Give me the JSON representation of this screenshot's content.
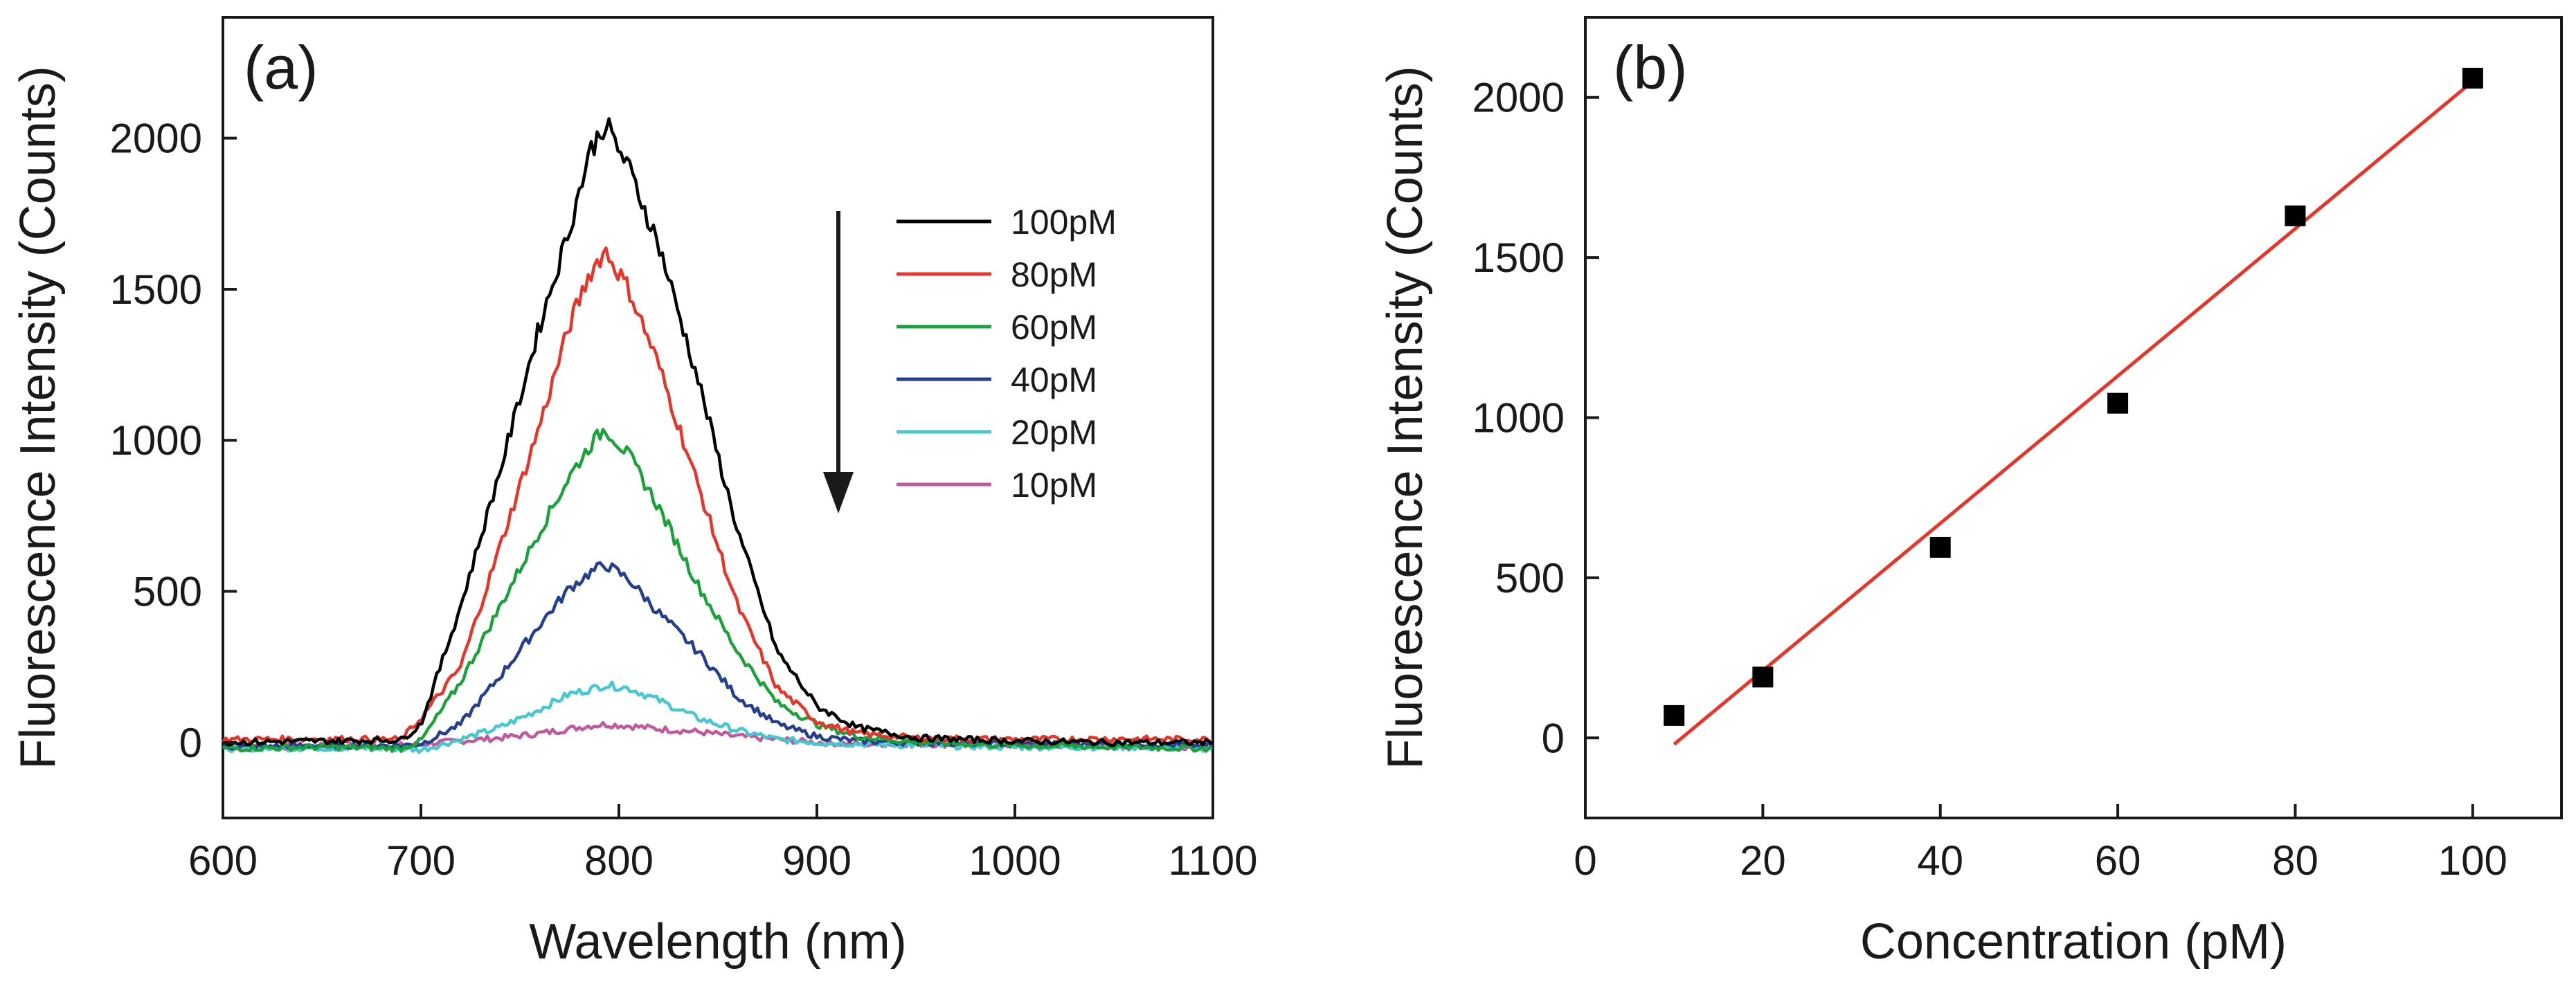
{
  "chart_data": [
    {
      "type": "line",
      "panel_label": "(a)",
      "xlabel": "Wavelength (nm)",
      "ylabel": "Fluorescence Intensity (Counts)",
      "xlim": [
        600,
        1100
      ],
      "ylim": [
        -250,
        2400
      ],
      "xticks": [
        600,
        700,
        800,
        900,
        1000,
        1100
      ],
      "yticks": [
        0,
        500,
        1000,
        1500,
        2000
      ],
      "grid": false,
      "legend_position": "top-right",
      "annotation": "downward arrow indicating decreasing concentration",
      "series": [
        {
          "name": "100pM",
          "color": "#000000",
          "peak_x": 793,
          "peak_y": 2050,
          "points": [
            [
              600,
              0
            ],
            [
              650,
              5
            ],
            [
              690,
              8
            ],
            [
              700,
              60
            ],
            [
              720,
              450
            ],
            [
              740,
              900
            ],
            [
              760,
              1380
            ],
            [
              775,
              1700
            ],
            [
              785,
              1950
            ],
            [
              793,
              2050
            ],
            [
              805,
              1900
            ],
            [
              820,
              1650
            ],
            [
              840,
              1200
            ],
            [
              860,
              700
            ],
            [
              880,
              300
            ],
            [
              900,
              120
            ],
            [
              920,
              50
            ],
            [
              950,
              15
            ],
            [
              1000,
              5
            ],
            [
              1050,
              0
            ],
            [
              1100,
              0
            ]
          ]
        },
        {
          "name": "80pM",
          "color": "#e8352a",
          "peak_x": 793,
          "peak_y": 1630,
          "points": [
            [
              600,
              10
            ],
            [
              650,
              12
            ],
            [
              690,
              10
            ],
            [
              700,
              80
            ],
            [
              720,
              250
            ],
            [
              740,
              650
            ],
            [
              760,
              1050
            ],
            [
              775,
              1380
            ],
            [
              785,
              1550
            ],
            [
              793,
              1630
            ],
            [
              805,
              1500
            ],
            [
              820,
              1250
            ],
            [
              840,
              850
            ],
            [
              860,
              450
            ],
            [
              880,
              180
            ],
            [
              900,
              70
            ],
            [
              920,
              30
            ],
            [
              950,
              15
            ],
            [
              1000,
              10
            ],
            [
              1050,
              12
            ],
            [
              1100,
              10
            ]
          ]
        },
        {
          "name": "60pM",
          "color": "#1aa33a",
          "peak_x": 793,
          "peak_y": 1040,
          "points": [
            [
              600,
              -20
            ],
            [
              650,
              -15
            ],
            [
              690,
              -20
            ],
            [
              700,
              5
            ],
            [
              720,
              200
            ],
            [
              740,
              450
            ],
            [
              760,
              700
            ],
            [
              775,
              880
            ],
            [
              785,
              980
            ],
            [
              793,
              1040
            ],
            [
              805,
              950
            ],
            [
              820,
              780
            ],
            [
              840,
              520
            ],
            [
              860,
              300
            ],
            [
              880,
              130
            ],
            [
              900,
              60
            ],
            [
              920,
              20
            ],
            [
              950,
              0
            ],
            [
              1000,
              -10
            ],
            [
              1050,
              -15
            ],
            [
              1100,
              -20
            ]
          ]
        },
        {
          "name": "40pM",
          "color": "#243f8f",
          "peak_x": 793,
          "peak_y": 590,
          "points": [
            [
              600,
              -15
            ],
            [
              650,
              -10
            ],
            [
              690,
              -10
            ],
            [
              700,
              -5
            ],
            [
              720,
              60
            ],
            [
              740,
              220
            ],
            [
              760,
              390
            ],
            [
              775,
              510
            ],
            [
              785,
              560
            ],
            [
              793,
              590
            ],
            [
              805,
              540
            ],
            [
              820,
              430
            ],
            [
              840,
              300
            ],
            [
              860,
              150
            ],
            [
              880,
              60
            ],
            [
              900,
              20
            ],
            [
              920,
              5
            ],
            [
              950,
              0
            ],
            [
              1000,
              -5
            ],
            [
              1050,
              -5
            ],
            [
              1100,
              -10
            ]
          ]
        },
        {
          "name": "20pM",
          "color": "#45c8cf",
          "peak_x": 793,
          "peak_y": 190,
          "points": [
            [
              600,
              -20
            ],
            [
              650,
              -18
            ],
            [
              690,
              -20
            ],
            [
              700,
              -25
            ],
            [
              720,
              10
            ],
            [
              740,
              50
            ],
            [
              760,
              110
            ],
            [
              775,
              160
            ],
            [
              785,
              175
            ],
            [
              793,
              190
            ],
            [
              805,
              180
            ],
            [
              820,
              140
            ],
            [
              840,
              80
            ],
            [
              860,
              40
            ],
            [
              880,
              10
            ],
            [
              900,
              0
            ],
            [
              920,
              -5
            ],
            [
              950,
              -10
            ],
            [
              1000,
              -15
            ],
            [
              1050,
              -15
            ],
            [
              1100,
              -20
            ]
          ]
        },
        {
          "name": "10pM",
          "color": "#c05a9c",
          "peak_x": 793,
          "peak_y": 60,
          "points": [
            [
              600,
              -15
            ],
            [
              650,
              -12
            ],
            [
              690,
              -10
            ],
            [
              700,
              -5
            ],
            [
              720,
              5
            ],
            [
              740,
              15
            ],
            [
              760,
              30
            ],
            [
              775,
              45
            ],
            [
              785,
              55
            ],
            [
              793,
              60
            ],
            [
              805,
              55
            ],
            [
              820,
              45
            ],
            [
              840,
              35
            ],
            [
              860,
              20
            ],
            [
              880,
              10
            ],
            [
              900,
              0
            ],
            [
              920,
              -5
            ],
            [
              950,
              -5
            ],
            [
              1000,
              -10
            ],
            [
              1050,
              -10
            ],
            [
              1100,
              -15
            ]
          ]
        }
      ]
    },
    {
      "type": "scatter",
      "panel_label": "(b)",
      "xlabel": "Concentration (pM)",
      "ylabel": "Fluorescence Intensity (Counts)",
      "xlim": [
        0,
        110
      ],
      "ylim": [
        -250,
        2250
      ],
      "xticks": [
        0,
        20,
        40,
        60,
        80,
        100
      ],
      "yticks": [
        0,
        500,
        1000,
        1500,
        2000
      ],
      "grid": false,
      "points": {
        "x": [
          10,
          20,
          40,
          60,
          80,
          100
        ],
        "y": [
          70,
          190,
          595,
          1045,
          1630,
          2060
        ]
      },
      "marker_color": "#000000",
      "fit_line": {
        "x": [
          10,
          100
        ],
        "y": [
          -20,
          2050
        ],
        "color": "#e8352a"
      }
    }
  ]
}
